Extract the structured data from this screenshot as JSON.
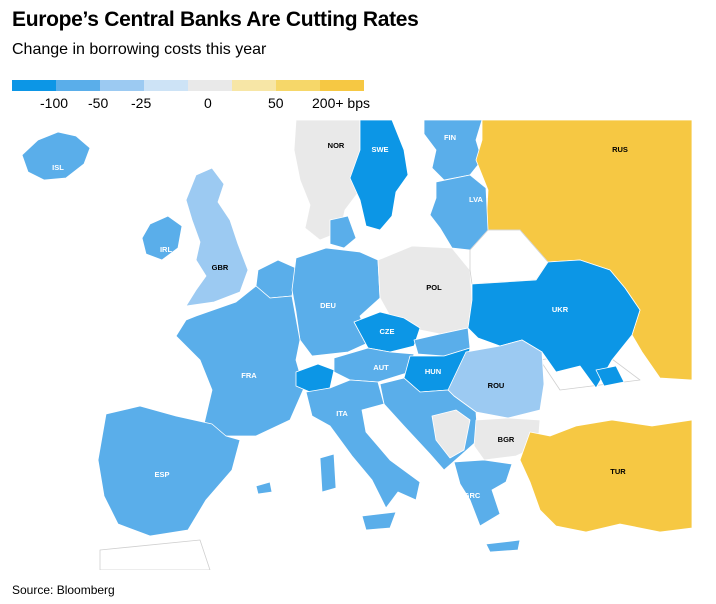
{
  "title": "Europe’s Central Banks Are Cutting Rates",
  "subtitle": "Change in borrowing costs this year",
  "legend": {
    "labels": [
      "-100",
      "-50",
      "-25",
      "0",
      "50",
      "200+ bps"
    ],
    "colors": [
      "#0c96e6",
      "#5aaeea",
      "#9ccaf2",
      "#cde3f6",
      "#e9e9e9",
      "#f7e6a6",
      "#f6d769",
      "#f6c843"
    ]
  },
  "countries": [
    {
      "code": "ISL",
      "category": "-50",
      "color": "#5aaeea"
    },
    {
      "code": "NOR",
      "category": "0",
      "color": "#e9e9e9"
    },
    {
      "code": "SWE",
      "category": "-100",
      "color": "#0c96e6"
    },
    {
      "code": "FIN",
      "category": "-50",
      "color": "#5aaeea"
    },
    {
      "code": "RUS",
      "category": "200+",
      "color": "#f6c843"
    },
    {
      "code": "LVA",
      "category": "-50",
      "color": "#5aaeea"
    },
    {
      "code": "IRL",
      "category": "-50",
      "color": "#5aaeea"
    },
    {
      "code": "GBR",
      "category": "-25",
      "color": "#9ccaf2"
    },
    {
      "code": "POL",
      "category": "0",
      "color": "#e9e9e9"
    },
    {
      "code": "DEU",
      "category": "-50",
      "color": "#5aaeea"
    },
    {
      "code": "UKR",
      "category": "-100",
      "color": "#0c96e6"
    },
    {
      "code": "CZE",
      "category": "-100",
      "color": "#0c96e6"
    },
    {
      "code": "FRA",
      "category": "-50",
      "color": "#5aaeea"
    },
    {
      "code": "AUT",
      "category": "-50",
      "color": "#5aaeea"
    },
    {
      "code": "HUN",
      "category": "-100",
      "color": "#0c96e6"
    },
    {
      "code": "ROU",
      "category": "-25",
      "color": "#9ccaf2"
    },
    {
      "code": "ITA",
      "category": "-50",
      "color": "#5aaeea"
    },
    {
      "code": "BGR",
      "category": "0",
      "color": "#e9e9e9"
    },
    {
      "code": "ESP",
      "category": "-50",
      "color": "#5aaeea"
    },
    {
      "code": "TUR",
      "category": "200+",
      "color": "#f6c843"
    },
    {
      "code": "GRC",
      "category": "-50",
      "color": "#5aaeea"
    }
  ],
  "source": "Source: Bloomberg"
}
